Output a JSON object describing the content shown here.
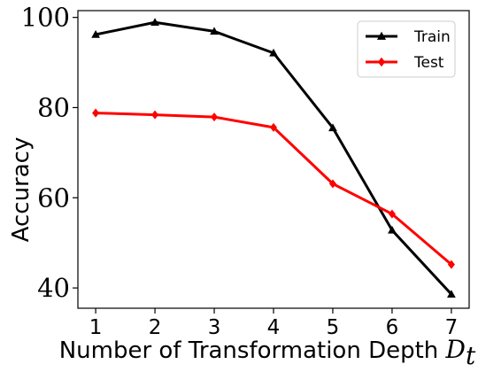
{
  "chart_data": {
    "type": "line",
    "xlabel": "Number of Transformation Depth ",
    "xlabel_symbol": "D",
    "xlabel_subscript": "t",
    "ylabel": "Accuracy",
    "x": [
      1,
      2,
      3,
      4,
      5,
      6,
      7
    ],
    "x_tick_labels": [
      "1",
      "2",
      "3",
      "4",
      "5",
      "6",
      "7"
    ],
    "xlim": [
      0.7,
      7.3
    ],
    "ylim": [
      35.5,
      101.5
    ],
    "y_ticks": [
      40,
      60,
      80,
      100
    ],
    "y_tick_labels": [
      "40",
      "60",
      "80",
      "100"
    ],
    "grid": false,
    "legend_position": "top-right",
    "series": [
      {
        "name": "Train",
        "color": "#000000",
        "marker": "triangle",
        "values": [
          96.2,
          98.9,
          96.9,
          92.1,
          75.5,
          52.8,
          38.6
        ]
      },
      {
        "name": "Test",
        "color": "#ff0000",
        "marker": "diamond",
        "values": [
          78.8,
          78.4,
          77.9,
          75.6,
          63.1,
          56.4,
          45.2
        ]
      }
    ]
  }
}
